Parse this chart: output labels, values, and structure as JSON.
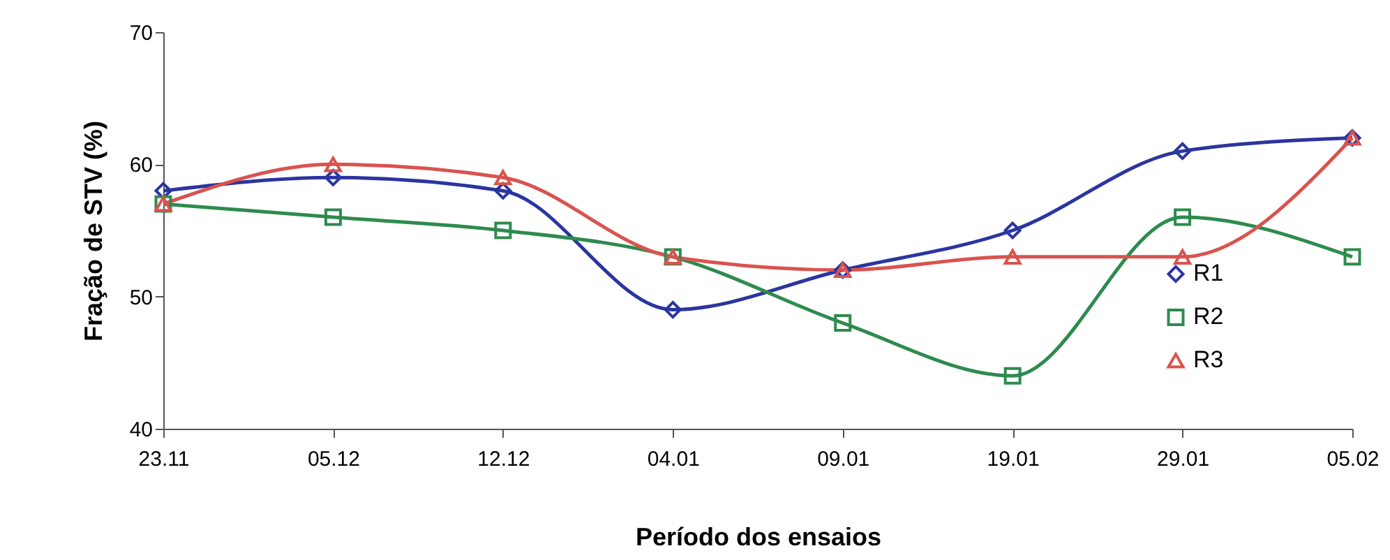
{
  "chart_data": {
    "type": "line",
    "xlabel": "Período dos ensaios",
    "ylabel": "Fração de STV (%)",
    "categories": [
      "23.11",
      "05.12",
      "12.12",
      "04.01",
      "09.01",
      "19.01",
      "29.01",
      "05.02"
    ],
    "series": [
      {
        "name": "R1",
        "color": "#2b35a0",
        "marker": "diamond",
        "values": [
          58,
          59,
          58,
          49,
          52,
          55,
          61,
          62
        ]
      },
      {
        "name": "R2",
        "color": "#2e8b4e",
        "marker": "square",
        "values": [
          57,
          56,
          55,
          53,
          48,
          44,
          56,
          53
        ]
      },
      {
        "name": "R3",
        "color": "#d9534f",
        "marker": "triangle",
        "values": [
          57,
          60,
          59,
          53,
          52,
          53,
          53,
          62
        ]
      }
    ],
    "ylim": [
      40,
      70
    ],
    "yticks": [
      40,
      50,
      60,
      70
    ],
    "grid": false,
    "legend": "right",
    "line_style": "solid"
  }
}
